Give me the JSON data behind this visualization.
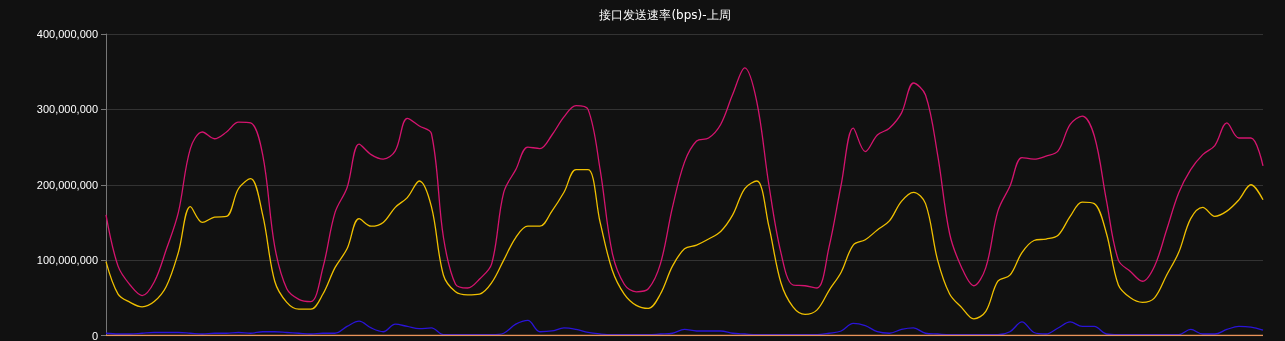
{
  "chart_data": {
    "type": "line",
    "title": "接口发送速率(bps)-上周",
    "categories": [
      null,
      null,
      null,
      null,
      null,
      null,
      null,
      null,
      null,
      null,
      null,
      null,
      null,
      null,
      null,
      null,
      null,
      null,
      null,
      null,
      null,
      null,
      null,
      null,
      null,
      null,
      null,
      null,
      null,
      null,
      null,
      null,
      null,
      null,
      null,
      null,
      null,
      null,
      null,
      null,
      null,
      null,
      null,
      null,
      null,
      null,
      null,
      null,
      null,
      null,
      null,
      null,
      null,
      null,
      null,
      null,
      null,
      null,
      null,
      null,
      null,
      null,
      null,
      null,
      null,
      null,
      null,
      null,
      null,
      null,
      null,
      null,
      null,
      null,
      null,
      null,
      null,
      null,
      null,
      null,
      null,
      null,
      null,
      null,
      null,
      null,
      null,
      null,
      null,
      null,
      null,
      null,
      null,
      null,
      null,
      null,
      null
    ],
    "series": [
      {
        "color": "#d4146e",
        "values": [
          160000000,
          92000000,
          67000000,
          53000000,
          71000000,
          114000000,
          163000000,
          248000000,
          270000000,
          261000000,
          270000000,
          283000000,
          282000000,
          240000000,
          118000000,
          62000000,
          48000000,
          45000000,
          90000000,
          163000000,
          196000000,
          254000000,
          240000000,
          234000000,
          245000000,
          288000000,
          278000000,
          268000000,
          130000000,
          68000000,
          63000000,
          75000000,
          95000000,
          190000000,
          220000000,
          250000000,
          248000000,
          266000000,
          290000000,
          305000000,
          300000000,
          220000000,
          110000000,
          68000000,
          58000000,
          62000000,
          95000000,
          170000000,
          230000000,
          258000000,
          262000000,
          280000000,
          320000000,
          355000000,
          310000000,
          200000000,
          110000000,
          67000000,
          66000000,
          63000000,
          118000000,
          200000000,
          275000000,
          244000000,
          266000000,
          275000000,
          295000000,
          335000000,
          319000000,
          240000000,
          135000000,
          90000000,
          66000000,
          90000000,
          165000000,
          198000000,
          236000000,
          234000000,
          238000000,
          245000000,
          280000000,
          291000000,
          265000000,
          180000000,
          100000000,
          85000000,
          72000000,
          92000000,
          140000000,
          189000000,
          220000000,
          240000000,
          252000000,
          282000000,
          262000000,
          262000000,
          225000000
        ]
      },
      {
        "color": "#f0c000",
        "values": [
          98000000,
          55000000,
          44000000,
          38000000,
          45000000,
          65000000,
          110000000,
          171000000,
          150000000,
          157000000,
          158000000,
          195000000,
          208000000,
          160000000,
          72000000,
          44000000,
          35000000,
          35000000,
          55000000,
          90000000,
          115000000,
          155000000,
          145000000,
          150000000,
          170000000,
          183000000,
          205000000,
          171000000,
          80000000,
          58000000,
          54000000,
          55000000,
          70000000,
          100000000,
          130000000,
          145000000,
          145000000,
          165000000,
          190000000,
          220000000,
          220000000,
          150000000,
          87000000,
          55000000,
          40000000,
          36000000,
          55000000,
          92000000,
          115000000,
          120000000,
          128000000,
          138000000,
          160000000,
          195000000,
          205000000,
          145000000,
          70000000,
          38000000,
          28000000,
          34000000,
          60000000,
          84000000,
          120000000,
          127000000,
          140000000,
          152000000,
          178000000,
          190000000,
          175000000,
          100000000,
          55000000,
          37000000,
          22000000,
          32000000,
          72000000,
          80000000,
          110000000,
          126000000,
          128000000,
          133000000,
          158000000,
          177000000,
          175000000,
          136000000,
          67000000,
          50000000,
          44000000,
          50000000,
          80000000,
          110000000,
          155000000,
          170000000,
          158000000,
          165000000,
          180000000,
          200000000,
          180000000
        ]
      },
      {
        "color": "#2a14d8",
        "values": [
          3000000,
          2000000,
          2000000,
          3000000,
          4000000,
          4000000,
          4000000,
          3000000,
          2000000,
          3000000,
          3000000,
          4000000,
          3000000,
          5000000,
          5000000,
          4000000,
          3000000,
          2000000,
          3000000,
          3000000,
          12000000,
          19000000,
          10000000,
          5000000,
          15000000,
          12000000,
          9000000,
          10000000,
          1000000,
          1000000,
          1000000,
          1000000,
          1000000,
          3000000,
          15000000,
          20000000,
          5000000,
          6000000,
          10000000,
          8000000,
          4000000,
          2000000,
          1000000,
          1000000,
          1000000,
          1000000,
          2000000,
          3000000,
          8000000,
          6000000,
          6000000,
          6000000,
          3000000,
          2000000,
          1000000,
          1000000,
          1000000,
          1000000,
          1000000,
          1000000,
          3000000,
          6000000,
          16000000,
          13000000,
          5000000,
          3000000,
          8000000,
          10000000,
          3000000,
          2000000,
          1000000,
          1000000,
          1000000,
          1000000,
          1000000,
          5000000,
          18000000,
          4000000,
          2000000,
          10000000,
          18000000,
          12000000,
          12000000,
          2000000,
          1000000,
          1000000,
          1000000,
          1000000,
          1000000,
          1000000,
          8000000,
          2000000,
          2000000,
          8000000,
          12000000,
          11000000,
          7000000
        ]
      },
      {
        "color": "#e8935a",
        "values": [
          0,
          0,
          0,
          0,
          0,
          0,
          0,
          0,
          0,
          0,
          0,
          0,
          0,
          0,
          0,
          0,
          0,
          0,
          0,
          0,
          0,
          0,
          0,
          0,
          0,
          0,
          0,
          0,
          0,
          0,
          0,
          0,
          0,
          0,
          0,
          0,
          0,
          0,
          0,
          0,
          0,
          0,
          0,
          0,
          0,
          0,
          0,
          0,
          0,
          0,
          0,
          0,
          0,
          0,
          0,
          0,
          0,
          0,
          0,
          0,
          0,
          0,
          0,
          0,
          0,
          0,
          0,
          0,
          0,
          0,
          0,
          0,
          0,
          0,
          0,
          0,
          0,
          0,
          0,
          0,
          0,
          0,
          0,
          0,
          0,
          0,
          0,
          0,
          0,
          0,
          0,
          0,
          0,
          0,
          0,
          0,
          0
        ]
      }
    ],
    "ylim": [
      0,
      400000000
    ],
    "yticks": [
      0,
      {
        "value": 100000000,
        "label": "100,000,000"
      },
      {
        "value": 200000000,
        "label": "200,000,000"
      },
      {
        "value": 300000000,
        "label": "300,000,000"
      },
      {
        "value": 400000000,
        "label": "400,000,000"
      }
    ],
    "grid": "y",
    "tick_labels": "y",
    "marker": "none",
    "line_style": "solid"
  }
}
